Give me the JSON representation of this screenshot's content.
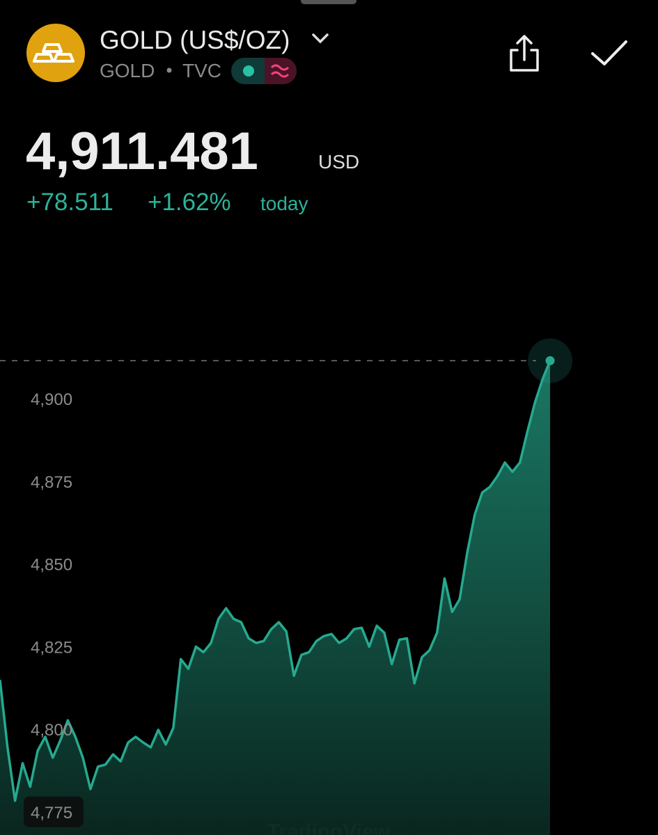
{
  "header": {
    "title": "GOLD (US$/OZ)",
    "symbol": "GOLD",
    "exchange": "TVC"
  },
  "quote": {
    "price": "4,911.481",
    "currency": "USD",
    "change": "+78.511",
    "change_percent": "+1.62%",
    "period": "today"
  },
  "chart_data": {
    "type": "area",
    "color": "#26a98f",
    "watermark": "TradingView",
    "values": [
      4814.9,
      4794.5,
      4778.4,
      4789.7,
      4782.6,
      4793.5,
      4797.7,
      4791.4,
      4796.6,
      4802.7,
      4797.7,
      4791.4,
      4781.9,
      4788.7,
      4789.3,
      4792.4,
      4790.3,
      4796.0,
      4797.7,
      4796.0,
      4794.5,
      4799.8,
      4795.4,
      4800.4,
      4821.2,
      4818.3,
      4825.0,
      4823.3,
      4826.1,
      4833.4,
      4836.6,
      4833.4,
      4832.4,
      4827.5,
      4826.1,
      4826.7,
      4830.3,
      4832.4,
      4829.6,
      4816.2,
      4822.5,
      4823.3,
      4826.7,
      4828.2,
      4828.8,
      4826.1,
      4827.5,
      4830.3,
      4830.7,
      4825.0,
      4831.3,
      4829.2,
      4819.7,
      4827.1,
      4827.5,
      4813.9,
      4821.8,
      4823.9,
      4829.2,
      4845.6,
      4835.5,
      4839.3,
      4853.4,
      4864.9,
      4871.6,
      4873.3,
      4876.5,
      4880.7,
      4877.9,
      4880.7,
      4890.1,
      4898.9,
      4905.9,
      4911.5
    ],
    "ylim": [
      4768,
      4920
    ],
    "yticks": [
      {
        "value": 4775,
        "label": "4,775"
      },
      {
        "value": 4800,
        "label": "4,800"
      },
      {
        "value": 4825,
        "label": "4,825"
      },
      {
        "value": 4850,
        "label": "4,850"
      },
      {
        "value": 4875,
        "label": "4,875"
      },
      {
        "value": 4900,
        "label": "4,900"
      }
    ]
  }
}
